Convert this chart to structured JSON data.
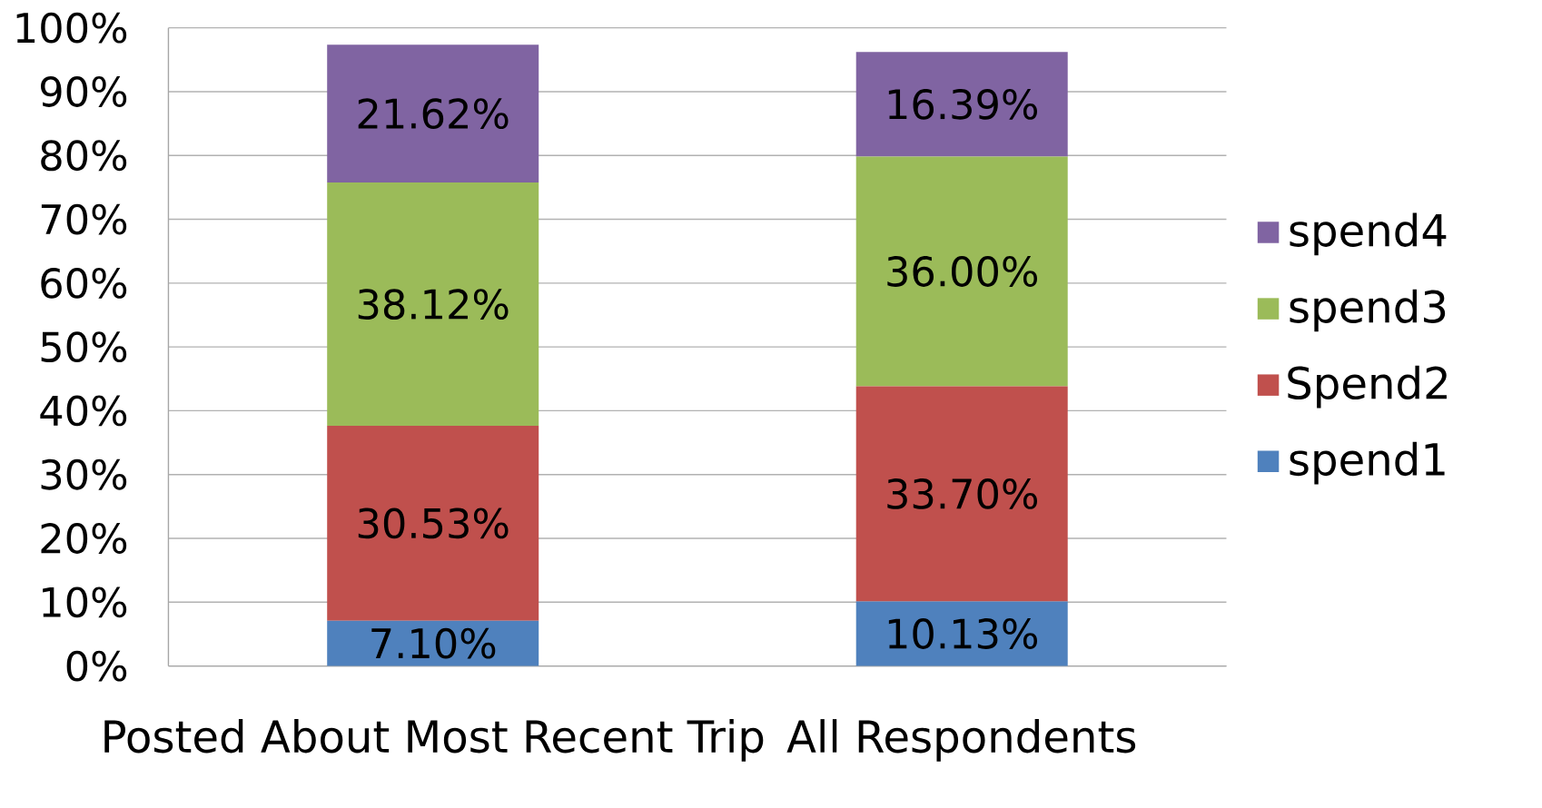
{
  "chart_data": {
    "type": "bar",
    "stacked": true,
    "categories": [
      "Posted About Most Recent Trip",
      "All Respondents"
    ],
    "series": [
      {
        "name": "spend1",
        "color": "#4f81bd",
        "values": [
          7.1,
          10.13
        ],
        "value_labels": [
          "7.10%",
          "10.13%"
        ]
      },
      {
        "name": "Spend2",
        "color": "#c0504d",
        "values": [
          30.53,
          33.7
        ],
        "value_labels": [
          "30.53%",
          "33.70%"
        ]
      },
      {
        "name": "spend3",
        "color": "#9bbb59",
        "values": [
          38.12,
          36.0
        ],
        "value_labels": [
          "38.12%",
          "36.00%"
        ]
      },
      {
        "name": "spend4",
        "color": "#8064a2",
        "values": [
          21.62,
          16.39
        ],
        "value_labels": [
          "21.62%",
          "16.39%"
        ]
      }
    ],
    "ylim": [
      0,
      100
    ],
    "yticks": [
      {
        "value": 0,
        "label": "0%"
      },
      {
        "value": 10,
        "label": "10%"
      },
      {
        "value": 20,
        "label": "20%"
      },
      {
        "value": 30,
        "label": "30%"
      },
      {
        "value": 40,
        "label": "40%"
      },
      {
        "value": 50,
        "label": "50%"
      },
      {
        "value": 60,
        "label": "60%"
      },
      {
        "value": 70,
        "label": "70%"
      },
      {
        "value": 80,
        "label": "80%"
      },
      {
        "value": 90,
        "label": "90%"
      },
      {
        "value": 100,
        "label": "100%"
      }
    ],
    "grid": "y",
    "legend": "right"
  }
}
